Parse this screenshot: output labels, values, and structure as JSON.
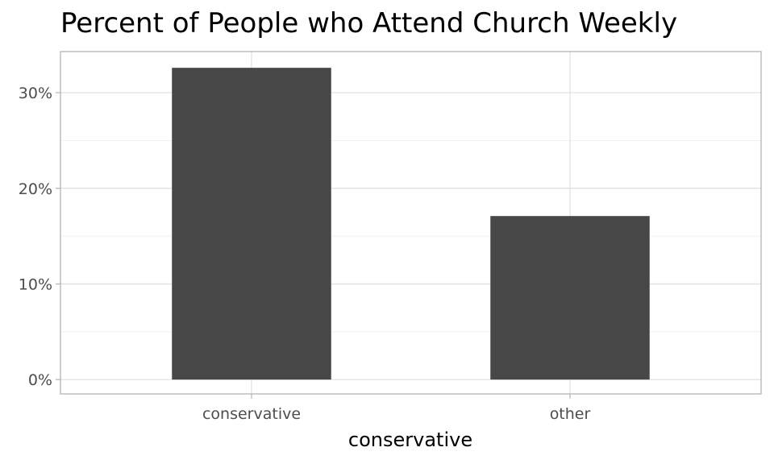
{
  "chart_data": {
    "type": "bar",
    "title": "Percent of People who Attend Church Weekly",
    "xlabel": "conservative",
    "ylabel": "",
    "categories": [
      "conservative",
      "other"
    ],
    "values": [
      0.326,
      0.171
    ],
    "ylim": [
      -0.015,
      0.343
    ],
    "yticks": [
      0,
      0.1,
      0.2,
      0.3
    ],
    "ytick_labels": [
      "0%",
      "10%",
      "20%",
      "30%"
    ],
    "bar_color": "#474747",
    "grid": true,
    "legend": "none"
  }
}
